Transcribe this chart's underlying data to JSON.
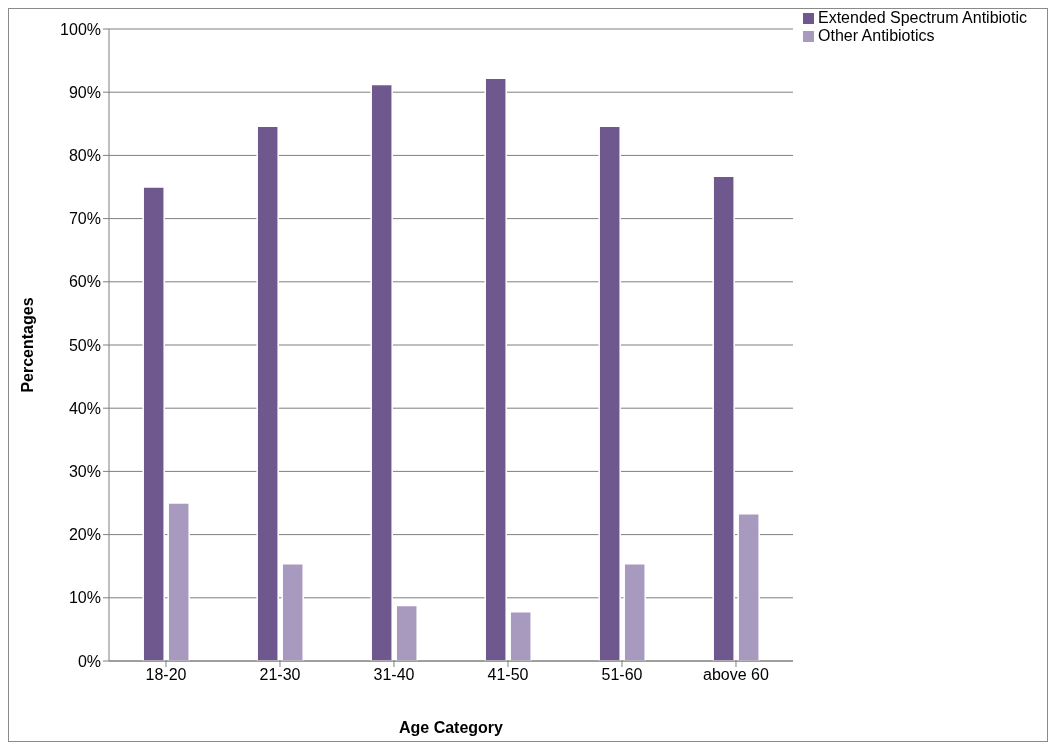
{
  "chart_data": {
    "type": "bar",
    "xlabel": "Age Category",
    "ylabel": "Percentages",
    "categories": [
      "18-20",
      "21-30",
      "31-40",
      "41-50",
      "51-60",
      "above 60"
    ],
    "series": [
      {
        "name": "Extended Spectrum Antibiotic",
        "color": "#6f588d",
        "values": [
          75,
          84.6,
          91.2,
          92.2,
          84.6,
          76.7
        ]
      },
      {
        "name": "Other Antibiotics",
        "color": "#a899bf",
        "values": [
          25,
          15.4,
          8.8,
          7.8,
          15.4,
          23.3
        ]
      }
    ],
    "ylim": [
      0,
      100
    ],
    "yticks": [
      {
        "value": 0,
        "label": "0%"
      },
      {
        "value": 10,
        "label": "10%"
      },
      {
        "value": 20,
        "label": "20%"
      },
      {
        "value": 30,
        "label": "30%"
      },
      {
        "value": 40,
        "label": "40%"
      },
      {
        "value": 50,
        "label": "50%"
      },
      {
        "value": 60,
        "label": "60%"
      },
      {
        "value": 70,
        "label": "70%"
      },
      {
        "value": 80,
        "label": "80%"
      },
      {
        "value": 90,
        "label": "90%"
      },
      {
        "value": 100,
        "label": "100%"
      }
    ],
    "grid": "y",
    "legend": "top right"
  }
}
